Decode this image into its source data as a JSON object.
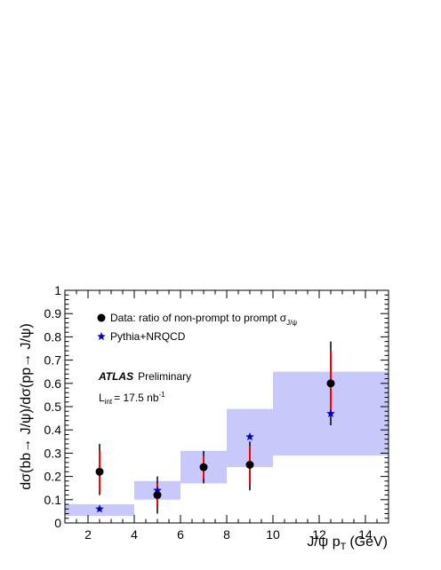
{
  "chart_data": {
    "type": "scatter",
    "xlabel": "J/ψ p",
    "xlabel_sub": "T",
    "xlabel_unit": "(GeV)",
    "ylabel": "dσ(bb→ J/ψ)/dσ(pp→ J/ψ)",
    "xlim": [
      1,
      15
    ],
    "ylim": [
      0,
      1
    ],
    "xticks": [
      2,
      4,
      6,
      8,
      10,
      12,
      14
    ],
    "yticks": [
      0,
      0.1,
      0.2,
      0.3,
      0.4,
      0.5,
      0.6,
      0.7,
      0.8,
      0.9,
      1
    ],
    "ytick_labels": [
      "0",
      "0.1",
      "0.2",
      "0.3",
      "0.4",
      "0.5",
      "0.6",
      "0.7",
      "0.8",
      "0.9",
      "1"
    ],
    "grid": false,
    "legend_position": "top-left",
    "annotation": {
      "experiment": "ATLAS",
      "status": "Preliminary",
      "lumi_prefix": "L",
      "lumi_sub": "int",
      "lumi_value": "= 17.5 nb",
      "lumi_sup": "-1"
    },
    "series": [
      {
        "name": "Data: ratio of non-prompt to prompt σ",
        "name_sub": "J/ψ",
        "marker": "circle",
        "color": "#000000",
        "points": [
          {
            "x": 2.5,
            "y": 0.22,
            "ylo": 0.12,
            "yhi": 0.34
          },
          {
            "x": 5.0,
            "y": 0.12,
            "ylo": 0.04,
            "yhi": 0.2
          },
          {
            "x": 7.0,
            "y": 0.24,
            "ylo": 0.17,
            "yhi": 0.31
          },
          {
            "x": 9.0,
            "y": 0.25,
            "ylo": 0.14,
            "yhi": 0.35
          },
          {
            "x": 12.5,
            "y": 0.6,
            "ylo": 0.42,
            "yhi": 0.78
          }
        ],
        "syst_color": "#ff0000",
        "syst_points": [
          {
            "x": 2.5,
            "ylo": 0.13,
            "yhi": 0.31
          },
          {
            "x": 5.0,
            "ylo": 0.07,
            "yhi": 0.17
          },
          {
            "x": 7.0,
            "ylo": 0.19,
            "yhi": 0.29
          },
          {
            "x": 9.0,
            "ylo": 0.17,
            "yhi": 0.33
          },
          {
            "x": 12.5,
            "ylo": 0.46,
            "yhi": 0.74
          }
        ]
      },
      {
        "name": "Pythia+NRQCD",
        "marker": "star",
        "color": "#0000cc",
        "band_color": "#c8c8fa",
        "points": [
          {
            "x": 2.5,
            "y": 0.06
          },
          {
            "x": 5.0,
            "y": 0.14
          },
          {
            "x": 7.0,
            "y": 0.24
          },
          {
            "x": 9.0,
            "y": 0.37
          },
          {
            "x": 12.5,
            "y": 0.47
          }
        ],
        "bands": [
          {
            "x0": 1,
            "x1": 4,
            "ylo": 0.03,
            "yhi": 0.08
          },
          {
            "x0": 4,
            "x1": 6,
            "ylo": 0.1,
            "yhi": 0.18
          },
          {
            "x0": 6,
            "x1": 8,
            "ylo": 0.17,
            "yhi": 0.31
          },
          {
            "x0": 8,
            "x1": 10,
            "ylo": 0.24,
            "yhi": 0.49
          },
          {
            "x0": 10,
            "x1": 15,
            "ylo": 0.29,
            "yhi": 0.65
          }
        ]
      }
    ]
  }
}
